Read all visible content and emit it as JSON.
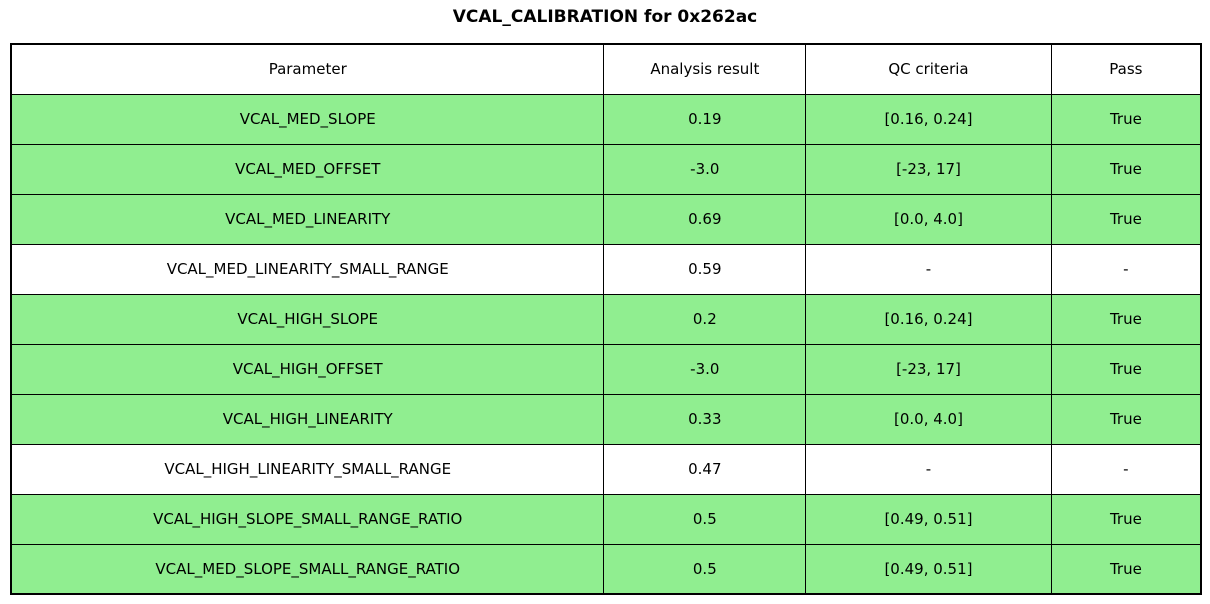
{
  "title": "VCAL_CALIBRATION for 0x262ac",
  "colors": {
    "pass_row_green": "#90ee90",
    "neutral_row_white": "#ffffff",
    "border_black": "#000000"
  },
  "table": {
    "headers": {
      "parameter": "Parameter",
      "result": "Analysis result",
      "qc": "QC criteria",
      "pass": "Pass"
    },
    "rows": [
      {
        "parameter": "VCAL_MED_SLOPE",
        "result": "0.19",
        "qc": "[0.16, 0.24]",
        "pass": "True"
      },
      {
        "parameter": "VCAL_MED_OFFSET",
        "result": "-3.0",
        "qc": "[-23, 17]",
        "pass": "True"
      },
      {
        "parameter": "VCAL_MED_LINEARITY",
        "result": "0.69",
        "qc": "[0.0, 4.0]",
        "pass": "True"
      },
      {
        "parameter": "VCAL_MED_LINEARITY_SMALL_RANGE",
        "result": "0.59",
        "qc": "-",
        "pass": "-"
      },
      {
        "parameter": "VCAL_HIGH_SLOPE",
        "result": "0.2",
        "qc": "[0.16, 0.24]",
        "pass": "True"
      },
      {
        "parameter": "VCAL_HIGH_OFFSET",
        "result": "-3.0",
        "qc": "[-23, 17]",
        "pass": "True"
      },
      {
        "parameter": "VCAL_HIGH_LINEARITY",
        "result": "0.33",
        "qc": "[0.0, 4.0]",
        "pass": "True"
      },
      {
        "parameter": "VCAL_HIGH_LINEARITY_SMALL_RANGE",
        "result": "0.47",
        "qc": "-",
        "pass": "-"
      },
      {
        "parameter": "VCAL_HIGH_SLOPE_SMALL_RANGE_RATIO",
        "result": "0.5",
        "qc": "[0.49, 0.51]",
        "pass": "True"
      },
      {
        "parameter": "VCAL_MED_SLOPE_SMALL_RANGE_RATIO",
        "result": "0.5",
        "qc": "[0.49, 0.51]",
        "pass": "True"
      }
    ]
  },
  "chart_data": {
    "type": "table",
    "title": "VCAL_CALIBRATION for 0x262ac",
    "columns": [
      "Parameter",
      "Analysis result",
      "QC criteria",
      "Pass"
    ],
    "rows": [
      [
        "VCAL_MED_SLOPE",
        "0.19",
        "[0.16, 0.24]",
        "True"
      ],
      [
        "VCAL_MED_OFFSET",
        "-3.0",
        "[-23, 17]",
        "True"
      ],
      [
        "VCAL_MED_LINEARITY",
        "0.69",
        "[0.0, 4.0]",
        "True"
      ],
      [
        "VCAL_MED_LINEARITY_SMALL_RANGE",
        "0.59",
        "-",
        "-"
      ],
      [
        "VCAL_HIGH_SLOPE",
        "0.2",
        "[0.16, 0.24]",
        "True"
      ],
      [
        "VCAL_HIGH_OFFSET",
        "-3.0",
        "[-23, 17]",
        "True"
      ],
      [
        "VCAL_HIGH_LINEARITY",
        "0.33",
        "[0.0, 4.0]",
        "True"
      ],
      [
        "VCAL_HIGH_LINEARITY_SMALL_RANGE",
        "0.47",
        "-",
        "-"
      ],
      [
        "VCAL_HIGH_SLOPE_SMALL_RANGE_RATIO",
        "0.5",
        "[0.49, 0.51]",
        "True"
      ],
      [
        "VCAL_MED_SLOPE_SMALL_RANGE_RATIO",
        "0.5",
        "[0.49, 0.51]",
        "True"
      ]
    ],
    "row_highlight": [
      "green",
      "green",
      "green",
      "white",
      "green",
      "green",
      "green",
      "white",
      "green",
      "green"
    ],
    "layout": "title centered above full-width bordered table; highlighted rows use light green background"
  }
}
